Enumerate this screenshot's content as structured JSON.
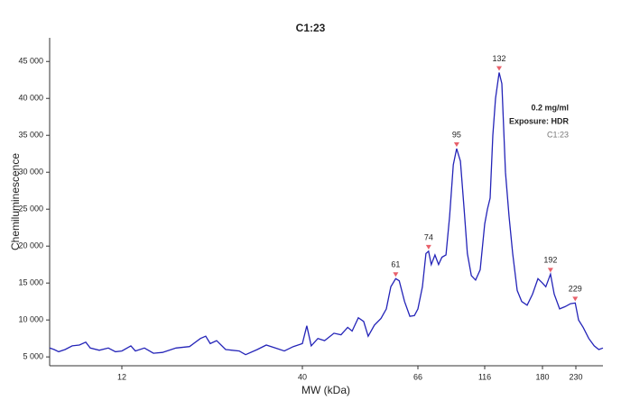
{
  "chart_data": {
    "type": "line",
    "title": "C1:23",
    "xlabel": "MW (kDa)",
    "ylabel": "Chemiluminescence",
    "annotations": [
      "0.2 mg/ml",
      "Exposure: HDR",
      "C1:23"
    ],
    "x": [
      0.8,
      1.5,
      2.2,
      3.2,
      4.3,
      5.4,
      6.4,
      7.1,
      8.5,
      9.9,
      11,
      12,
      13.4,
      14.1,
      15.5,
      16.9,
      18.3,
      20.4,
      22.5,
      24.2,
      25,
      25.7,
      26.7,
      28.1,
      30.2,
      31.2,
      33,
      34.4,
      35.8,
      37.2,
      38.6,
      40,
      41,
      42,
      43.5,
      45,
      47.1,
      48.7,
      50.2,
      51.2,
      52.6,
      53.8,
      54.8,
      56.2,
      57.7,
      58.9,
      59.9,
      61,
      61.8,
      63,
      64.2,
      65.2,
      66,
      69.4,
      72,
      74,
      76,
      78.8,
      81.5,
      84,
      87,
      89.7,
      92.5,
      95,
      97.8,
      100.6,
      103,
      106,
      109.2,
      112.6,
      116,
      119,
      122,
      125,
      128,
      132,
      135,
      139,
      143,
      147,
      152,
      157,
      163,
      169,
      175,
      180,
      185,
      192,
      197.6,
      205.7,
      213.8,
      222,
      229,
      234,
      240.8,
      249,
      257,
      263.8,
      270
    ],
    "series": [
      {
        "color": "#2424b8",
        "values": [
          6200,
          6000,
          5700,
          6000,
          6500,
          6600,
          7000,
          6200,
          5900,
          6200,
          5700,
          5800,
          6500,
          5800,
          6200,
          5500,
          5600,
          6200,
          6400,
          7500,
          7800,
          6800,
          7200,
          6000,
          5800,
          5300,
          6000,
          6600,
          6200,
          5800,
          6400,
          6800,
          9200,
          6500,
          7500,
          7200,
          8200,
          8000,
          9000,
          8500,
          10300,
          9800,
          7800,
          9300,
          10200,
          11500,
          14500,
          15600,
          15300,
          12500,
          10500,
          10600,
          11500,
          14500,
          19000,
          19300,
          17500,
          18800,
          17500,
          18500,
          18800,
          24000,
          31000,
          33200,
          31500,
          25000,
          19000,
          16000,
          15400,
          16800,
          23000,
          25000,
          26500,
          35000,
          40000,
          43500,
          42000,
          30000,
          24000,
          19000,
          14000,
          12500,
          12000,
          13500,
          15600,
          15000,
          14500,
          16200,
          13500,
          11500,
          11800,
          12200,
          12300,
          10000,
          9000,
          7500,
          6500,
          6000,
          6200
        ]
      }
    ],
    "peaks": [
      61,
      74,
      95,
      132,
      192,
      229
    ],
    "peak_color": "#e8606a",
    "xlim": [
      0.8,
      270
    ],
    "xticks": [
      12,
      40,
      66,
      116,
      180,
      230
    ],
    "ylim": [
      3800,
      48200
    ],
    "yticks": [
      {
        "value": 5000,
        "label": "5 000"
      },
      {
        "value": 10000,
        "label": "10 000"
      },
      {
        "value": 15000,
        "label": "15 000"
      },
      {
        "value": 20000,
        "label": "20 000"
      },
      {
        "value": 25000,
        "label": "25 000"
      },
      {
        "value": 30000,
        "label": "30 000"
      },
      {
        "value": 35000,
        "label": "35 000"
      },
      {
        "value": 40000,
        "label": "40 000"
      },
      {
        "value": 45000,
        "label": "45 000"
      }
    ]
  }
}
